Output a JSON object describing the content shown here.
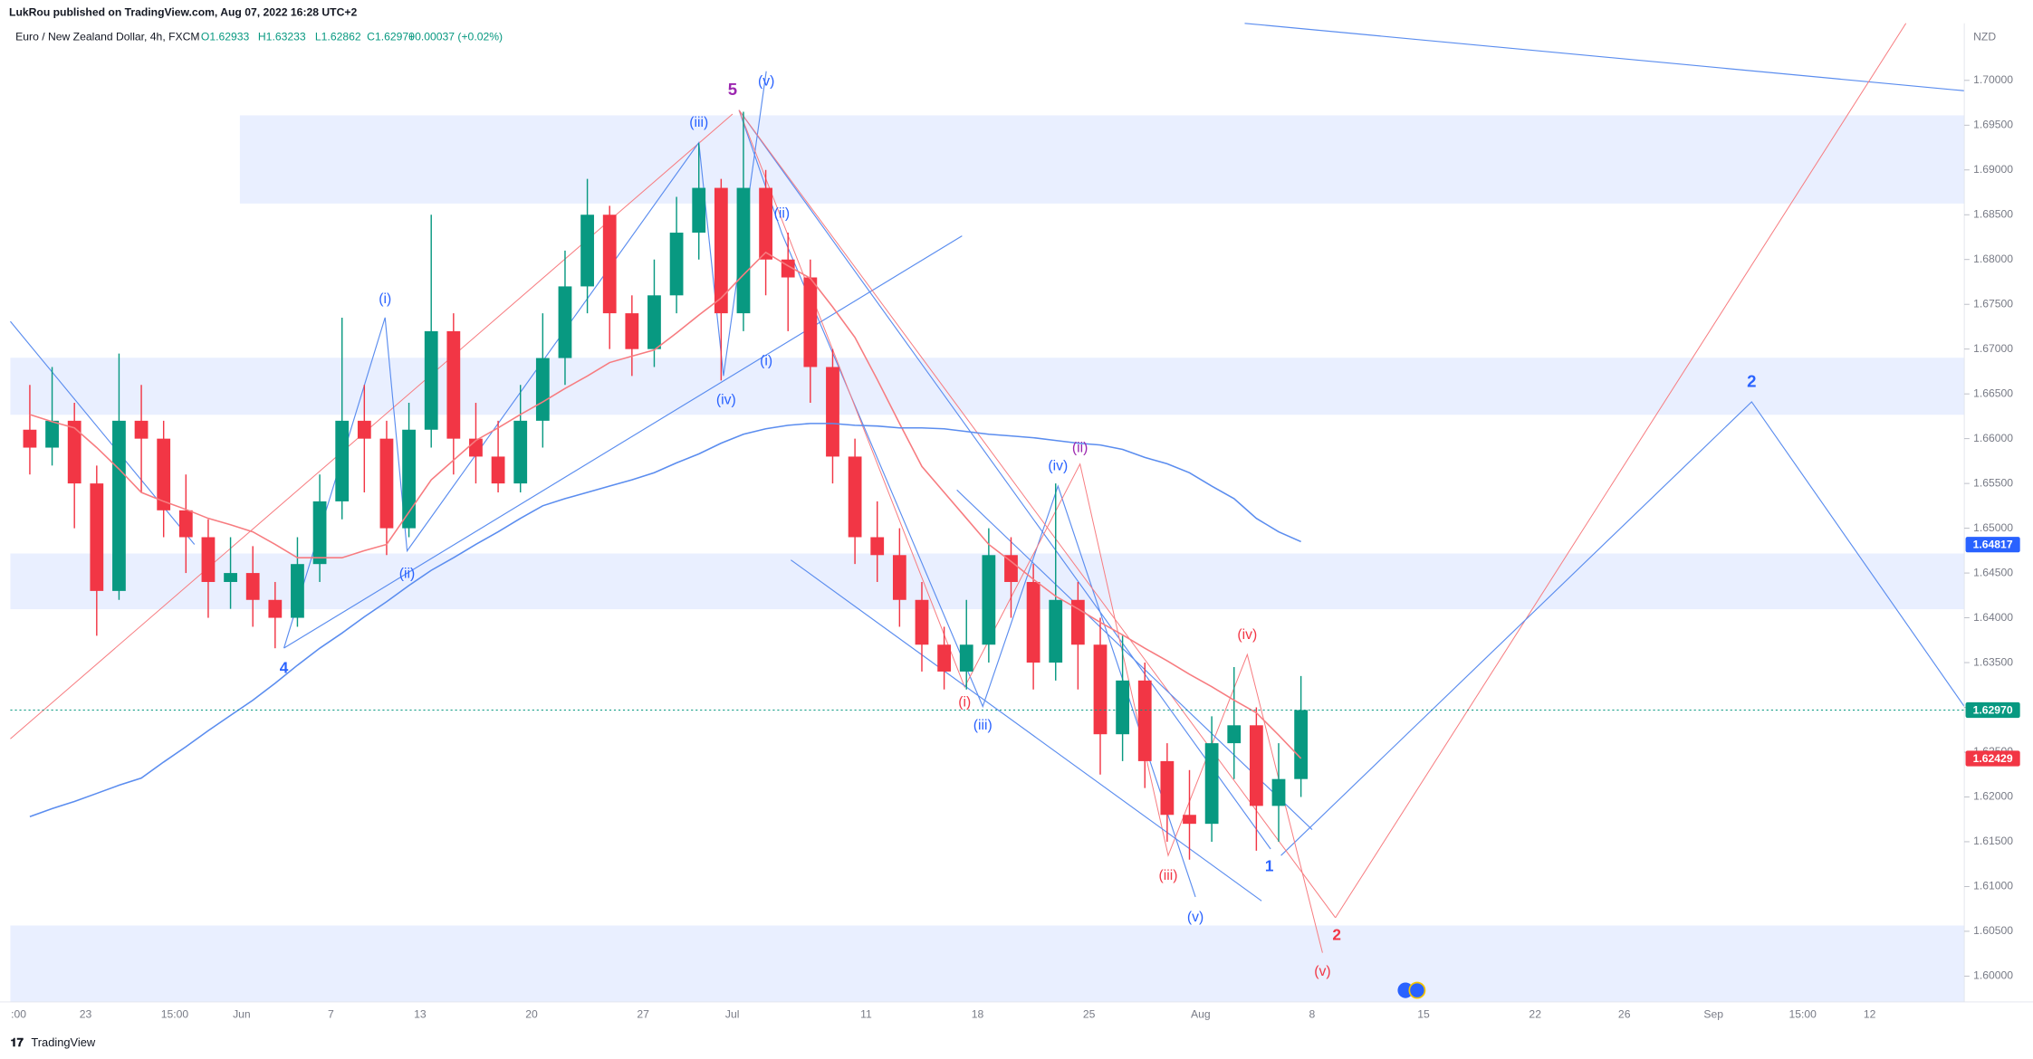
{
  "header": {
    "publisher": "LukRou published on TradingView.com, Aug 07, 2022 16:28 UTC+2"
  },
  "chart_data": {
    "type": "candlestick",
    "title": "Euro / New Zealand Dollar, 4h, FXCM",
    "ohlc_labels": [
      "O1.62933",
      "H1.63233",
      "L1.62862",
      "C1.62970",
      "+0.00037 (+0.02%)"
    ],
    "currency": "NZD",
    "categories": [
      ":00",
      null,
      null,
      "23",
      null,
      null,
      null,
      "15:00",
      null,
      null,
      "Jun",
      null,
      null,
      null,
      "7",
      null,
      null,
      null,
      "13",
      null,
      null,
      null,
      null,
      "20",
      null,
      null,
      null,
      null,
      "27",
      null,
      null,
      null,
      "Jul",
      null,
      null,
      null,
      null,
      null,
      "11",
      null,
      null,
      null,
      null,
      "18",
      null,
      null,
      null,
      null,
      "25",
      null,
      null,
      null,
      null,
      "Aug",
      null,
      null,
      null,
      null,
      "8",
      null,
      null,
      null,
      null,
      "15",
      null,
      null,
      null,
      null,
      "22",
      null,
      null,
      null,
      "26",
      null,
      null,
      null,
      "Sep",
      null,
      null,
      null,
      "15:00",
      null,
      null,
      "12",
      null
    ],
    "open": [
      1.661,
      1.659,
      1.662,
      1.655,
      1.643,
      1.662,
      1.66,
      1.652,
      1.649,
      1.644,
      1.645,
      1.642,
      1.64,
      1.646,
      1.653,
      1.662,
      1.66,
      1.65,
      1.661,
      1.672,
      1.66,
      1.658,
      1.655,
      1.662,
      1.669,
      1.677,
      1.685,
      1.674,
      1.67,
      1.676,
      1.683,
      1.688,
      1.674,
      1.688,
      1.68,
      1.678,
      1.668,
      1.658,
      1.649,
      1.647,
      1.642,
      1.637,
      1.634,
      1.637,
      1.647,
      1.644,
      1.635,
      1.642,
      1.637,
      1.627,
      1.633,
      1.624,
      1.618,
      1.617,
      1.626,
      1.628,
      1.619,
      1.622,
      null,
      null,
      null,
      null,
      null,
      null,
      null,
      null,
      null,
      null,
      null,
      null,
      null,
      null,
      null,
      null,
      null,
      null,
      null,
      null,
      null,
      null,
      null,
      null,
      null,
      null,
      null
    ],
    "high": [
      1.666,
      1.668,
      1.664,
      1.657,
      1.6695,
      1.666,
      1.662,
      1.656,
      1.651,
      1.649,
      1.648,
      1.644,
      1.649,
      1.656,
      1.6735,
      1.666,
      1.662,
      1.664,
      1.685,
      1.674,
      1.664,
      1.662,
      1.666,
      1.674,
      1.681,
      1.689,
      1.686,
      1.676,
      1.68,
      1.687,
      1.693,
      1.689,
      1.6965,
      1.69,
      1.683,
      1.68,
      1.67,
      1.66,
      1.653,
      1.65,
      1.644,
      1.639,
      1.642,
      1.65,
      1.649,
      1.646,
      1.655,
      1.644,
      1.64,
      1.638,
      1.635,
      1.626,
      1.623,
      1.629,
      1.6345,
      1.63,
      1.626,
      1.6335,
      null,
      null,
      null,
      null,
      null,
      null,
      null,
      null,
      null,
      null,
      null,
      null,
      null,
      null,
      null,
      null,
      null,
      null,
      null,
      null,
      null,
      null,
      null,
      null,
      null,
      null,
      null
    ],
    "low": [
      1.656,
      1.657,
      1.65,
      1.638,
      1.642,
      1.654,
      1.649,
      1.645,
      1.64,
      1.641,
      1.639,
      1.6366,
      1.639,
      1.644,
      1.651,
      1.654,
      1.647,
      1.649,
      1.659,
      1.656,
      1.655,
      1.654,
      1.654,
      1.659,
      1.666,
      1.674,
      1.67,
      1.667,
      1.668,
      1.674,
      1.68,
      1.6665,
      1.672,
      1.676,
      1.672,
      1.664,
      1.655,
      1.646,
      1.644,
      1.639,
      1.634,
      1.632,
      1.632,
      1.635,
      1.64,
      1.632,
      1.633,
      1.632,
      1.6225,
      1.624,
      1.621,
      1.615,
      1.613,
      1.615,
      1.622,
      1.614,
      1.615,
      1.62,
      null,
      null,
      null,
      null,
      null,
      null,
      null,
      null,
      null,
      null,
      null,
      null,
      null,
      null,
      null,
      null,
      null,
      null,
      null,
      null,
      null,
      null,
      null,
      null,
      null,
      null,
      null
    ],
    "close": [
      1.659,
      1.662,
      1.655,
      1.643,
      1.662,
      1.66,
      1.652,
      1.649,
      1.644,
      1.645,
      1.642,
      1.64,
      1.646,
      1.653,
      1.662,
      1.66,
      1.65,
      1.661,
      1.672,
      1.66,
      1.658,
      1.655,
      1.662,
      1.669,
      1.677,
      1.685,
      1.674,
      1.67,
      1.676,
      1.683,
      1.688,
      1.674,
      1.688,
      1.68,
      1.678,
      1.668,
      1.658,
      1.649,
      1.647,
      1.642,
      1.637,
      1.634,
      1.637,
      1.647,
      1.644,
      1.635,
      1.642,
      1.637,
      1.627,
      1.633,
      1.624,
      1.618,
      1.617,
      1.626,
      1.628,
      1.619,
      1.622,
      1.6297,
      null,
      null,
      null,
      null,
      null,
      null,
      null,
      null,
      null,
      null,
      null,
      null,
      null,
      null,
      null,
      null,
      null,
      null,
      null,
      null,
      null,
      null,
      null,
      null,
      null,
      null,
      null
    ],
    "up_color": "#089981",
    "down_color": "#f23645",
    "overlays": [
      {
        "color": "#f77c80",
        "values": [
          1.6627,
          1.6619,
          1.6612,
          1.659,
          1.6566,
          1.654,
          1.653,
          1.6521,
          1.6511,
          1.6504,
          1.6496,
          1.6482,
          1.6467,
          1.6467,
          1.6467,
          1.6475,
          1.6482,
          1.6518,
          1.6554,
          1.6576,
          1.6598,
          1.6612,
          1.6627,
          1.6641,
          1.6656,
          1.667,
          1.6685,
          1.6692,
          1.6699,
          1.6718,
          1.6738,
          1.6757,
          1.6783,
          1.6808,
          1.6793,
          1.6779,
          1.6747,
          1.6713,
          1.6666,
          1.6617,
          1.6569,
          1.654,
          1.6511,
          1.6482,
          1.6463,
          1.6443,
          1.6424,
          1.641,
          1.6395,
          1.6381,
          1.6366,
          1.6352,
          1.6337,
          1.6323,
          1.6308,
          1.6294,
          1.6269,
          1.6243,
          null,
          null,
          null,
          null,
          null,
          null,
          null,
          null,
          null,
          null,
          null,
          null,
          null,
          null,
          null,
          null,
          null,
          null,
          null,
          null,
          null,
          null,
          null,
          null,
          null,
          null,
          null
        ]
      },
      {
        "color": "#5b8def",
        "values": [
          1.6178,
          1.6187,
          1.6195,
          1.6204,
          1.6213,
          1.6221,
          1.6239,
          1.6256,
          1.6274,
          1.6291,
          1.6308,
          1.6327,
          1.6347,
          1.6366,
          1.6383,
          1.6401,
          1.6418,
          1.6436,
          1.6453,
          1.6467,
          1.6482,
          1.6496,
          1.6511,
          1.6525,
          1.6533,
          1.654,
          1.6547,
          1.6554,
          1.6562,
          1.6573,
          1.6583,
          1.6595,
          1.6605,
          1.6611,
          1.6615,
          1.6617,
          1.6617,
          1.6615,
          1.6614,
          1.6612,
          1.6612,
          1.6611,
          1.6608,
          1.6605,
          1.6603,
          1.6601,
          1.6598,
          1.6595,
          1.6593,
          1.6588,
          1.6579,
          1.6572,
          1.6562,
          1.6547,
          1.6533,
          1.6511,
          1.6496,
          1.6485,
          null,
          null,
          null,
          null,
          null,
          null,
          null,
          null,
          null,
          null,
          null,
          null,
          null,
          null,
          null,
          null,
          null,
          null,
          null,
          null,
          null,
          null,
          null,
          null,
          null,
          null,
          null
        ]
      }
    ],
    "ylim": [
      1.59711,
      1.70637
    ],
    "yticks": [
      {
        "value": 1.6,
        "label": "1.60000"
      },
      {
        "value": 1.605,
        "label": "1.60500"
      },
      {
        "value": 1.61,
        "label": "1.61000"
      },
      {
        "value": 1.615,
        "label": "1.61500"
      },
      {
        "value": 1.62,
        "label": "1.62000"
      },
      {
        "value": 1.625,
        "label": "1.62500"
      },
      {
        "value": 1.63,
        "label": "1.63000"
      },
      {
        "value": 1.635,
        "label": "1.63500"
      },
      {
        "value": 1.64,
        "label": "1.64000"
      },
      {
        "value": 1.645,
        "label": "1.64500"
      },
      {
        "value": 1.65,
        "label": "1.65000"
      },
      {
        "value": 1.655,
        "label": "1.65500"
      },
      {
        "value": 1.66,
        "label": "1.66000"
      },
      {
        "value": 1.665,
        "label": "1.66500"
      },
      {
        "value": 1.67,
        "label": "1.67000"
      },
      {
        "value": 1.675,
        "label": "1.67500"
      },
      {
        "value": 1.68,
        "label": "1.68000"
      },
      {
        "value": 1.685,
        "label": "1.68500"
      },
      {
        "value": 1.69,
        "label": "1.69000"
      },
      {
        "value": 1.695,
        "label": "1.69500"
      },
      {
        "value": 1.7,
        "label": "1.70000"
      }
    ],
    "price_tags": [
      {
        "value": 1.64817,
        "label": "1.64817",
        "color": "#2962ff"
      },
      {
        "value": 1.6297,
        "label": "1.62970",
        "color": "#089981"
      },
      {
        "value": 1.62429,
        "label": "1.62429",
        "color": "#f23645"
      }
    ],
    "annotations": [
      "5",
      "(v)",
      "(iii)",
      "(ii)",
      "(i)",
      "(iv)",
      "(i)",
      "(ii)",
      "4",
      "(iv)",
      "(ii)",
      "(i)",
      "(iii)",
      "(iv)",
      "(iii)",
      "(v)",
      "1",
      "2",
      "(v)",
      "2"
    ]
  },
  "footer": {
    "brand": "TradingView"
  }
}
